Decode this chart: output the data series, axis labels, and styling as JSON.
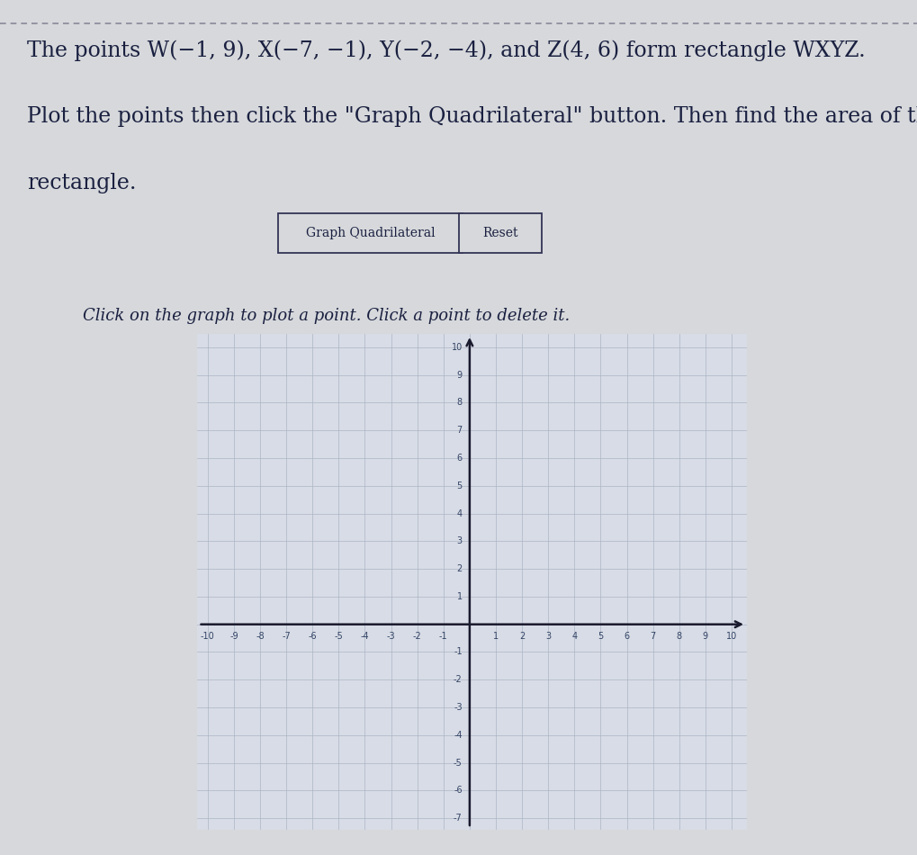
{
  "title_line1": "The points W(−1, 9), X(−7, −1), Y(−2, −4), and Z(4, 6) form rectangle WXYZ.",
  "title_line2": "Plot the points then click the \"Graph Quadrilateral\" button. Then find the area of the",
  "title_line3": "rectangle.",
  "btn1_text": "Graph Quadrilateral",
  "btn2_text": "Reset",
  "instruction": "Click on the graph to plot a point. Click a point to delete it.",
  "bg_color": "#cdd0d4",
  "paper_color": "#d6d8db",
  "grid_color": "#aab4c4",
  "axis_color": "#1a1a2e",
  "text_color": "#1a2040",
  "x_range": [
    -10,
    10
  ],
  "y_range": [
    -7,
    10
  ],
  "title_fontsize": 17,
  "tick_fontsize": 7
}
